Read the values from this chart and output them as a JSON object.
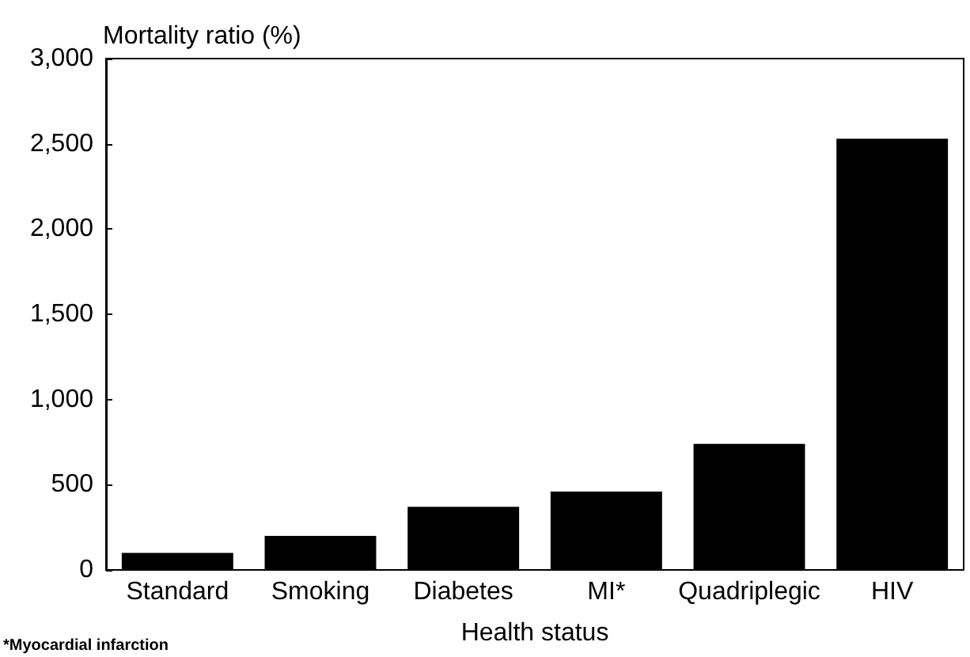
{
  "chart_data": {
    "type": "bar",
    "ylabel": "Mortality ratio (%)",
    "xlabel": "Health status",
    "categories": [
      "Standard",
      "Smoking",
      "Diabetes",
      "MI*",
      "Quadriplegic",
      "HIV"
    ],
    "values": [
      100,
      200,
      370,
      460,
      740,
      2530
    ],
    "color": "#000000",
    "ylim": [
      0,
      3000
    ],
    "yticks": [
      {
        "value": 0,
        "label": "0"
      },
      {
        "value": 500,
        "label": "500"
      },
      {
        "value": 1000,
        "label": "1,000"
      },
      {
        "value": 1500,
        "label": "1,500"
      },
      {
        "value": 2000,
        "label": "2,000"
      },
      {
        "value": 2500,
        "label": "2,500"
      },
      {
        "value": 3000,
        "label": "3,000"
      }
    ],
    "grid": false,
    "annotations": [
      "*Myocardial infarction"
    ]
  }
}
